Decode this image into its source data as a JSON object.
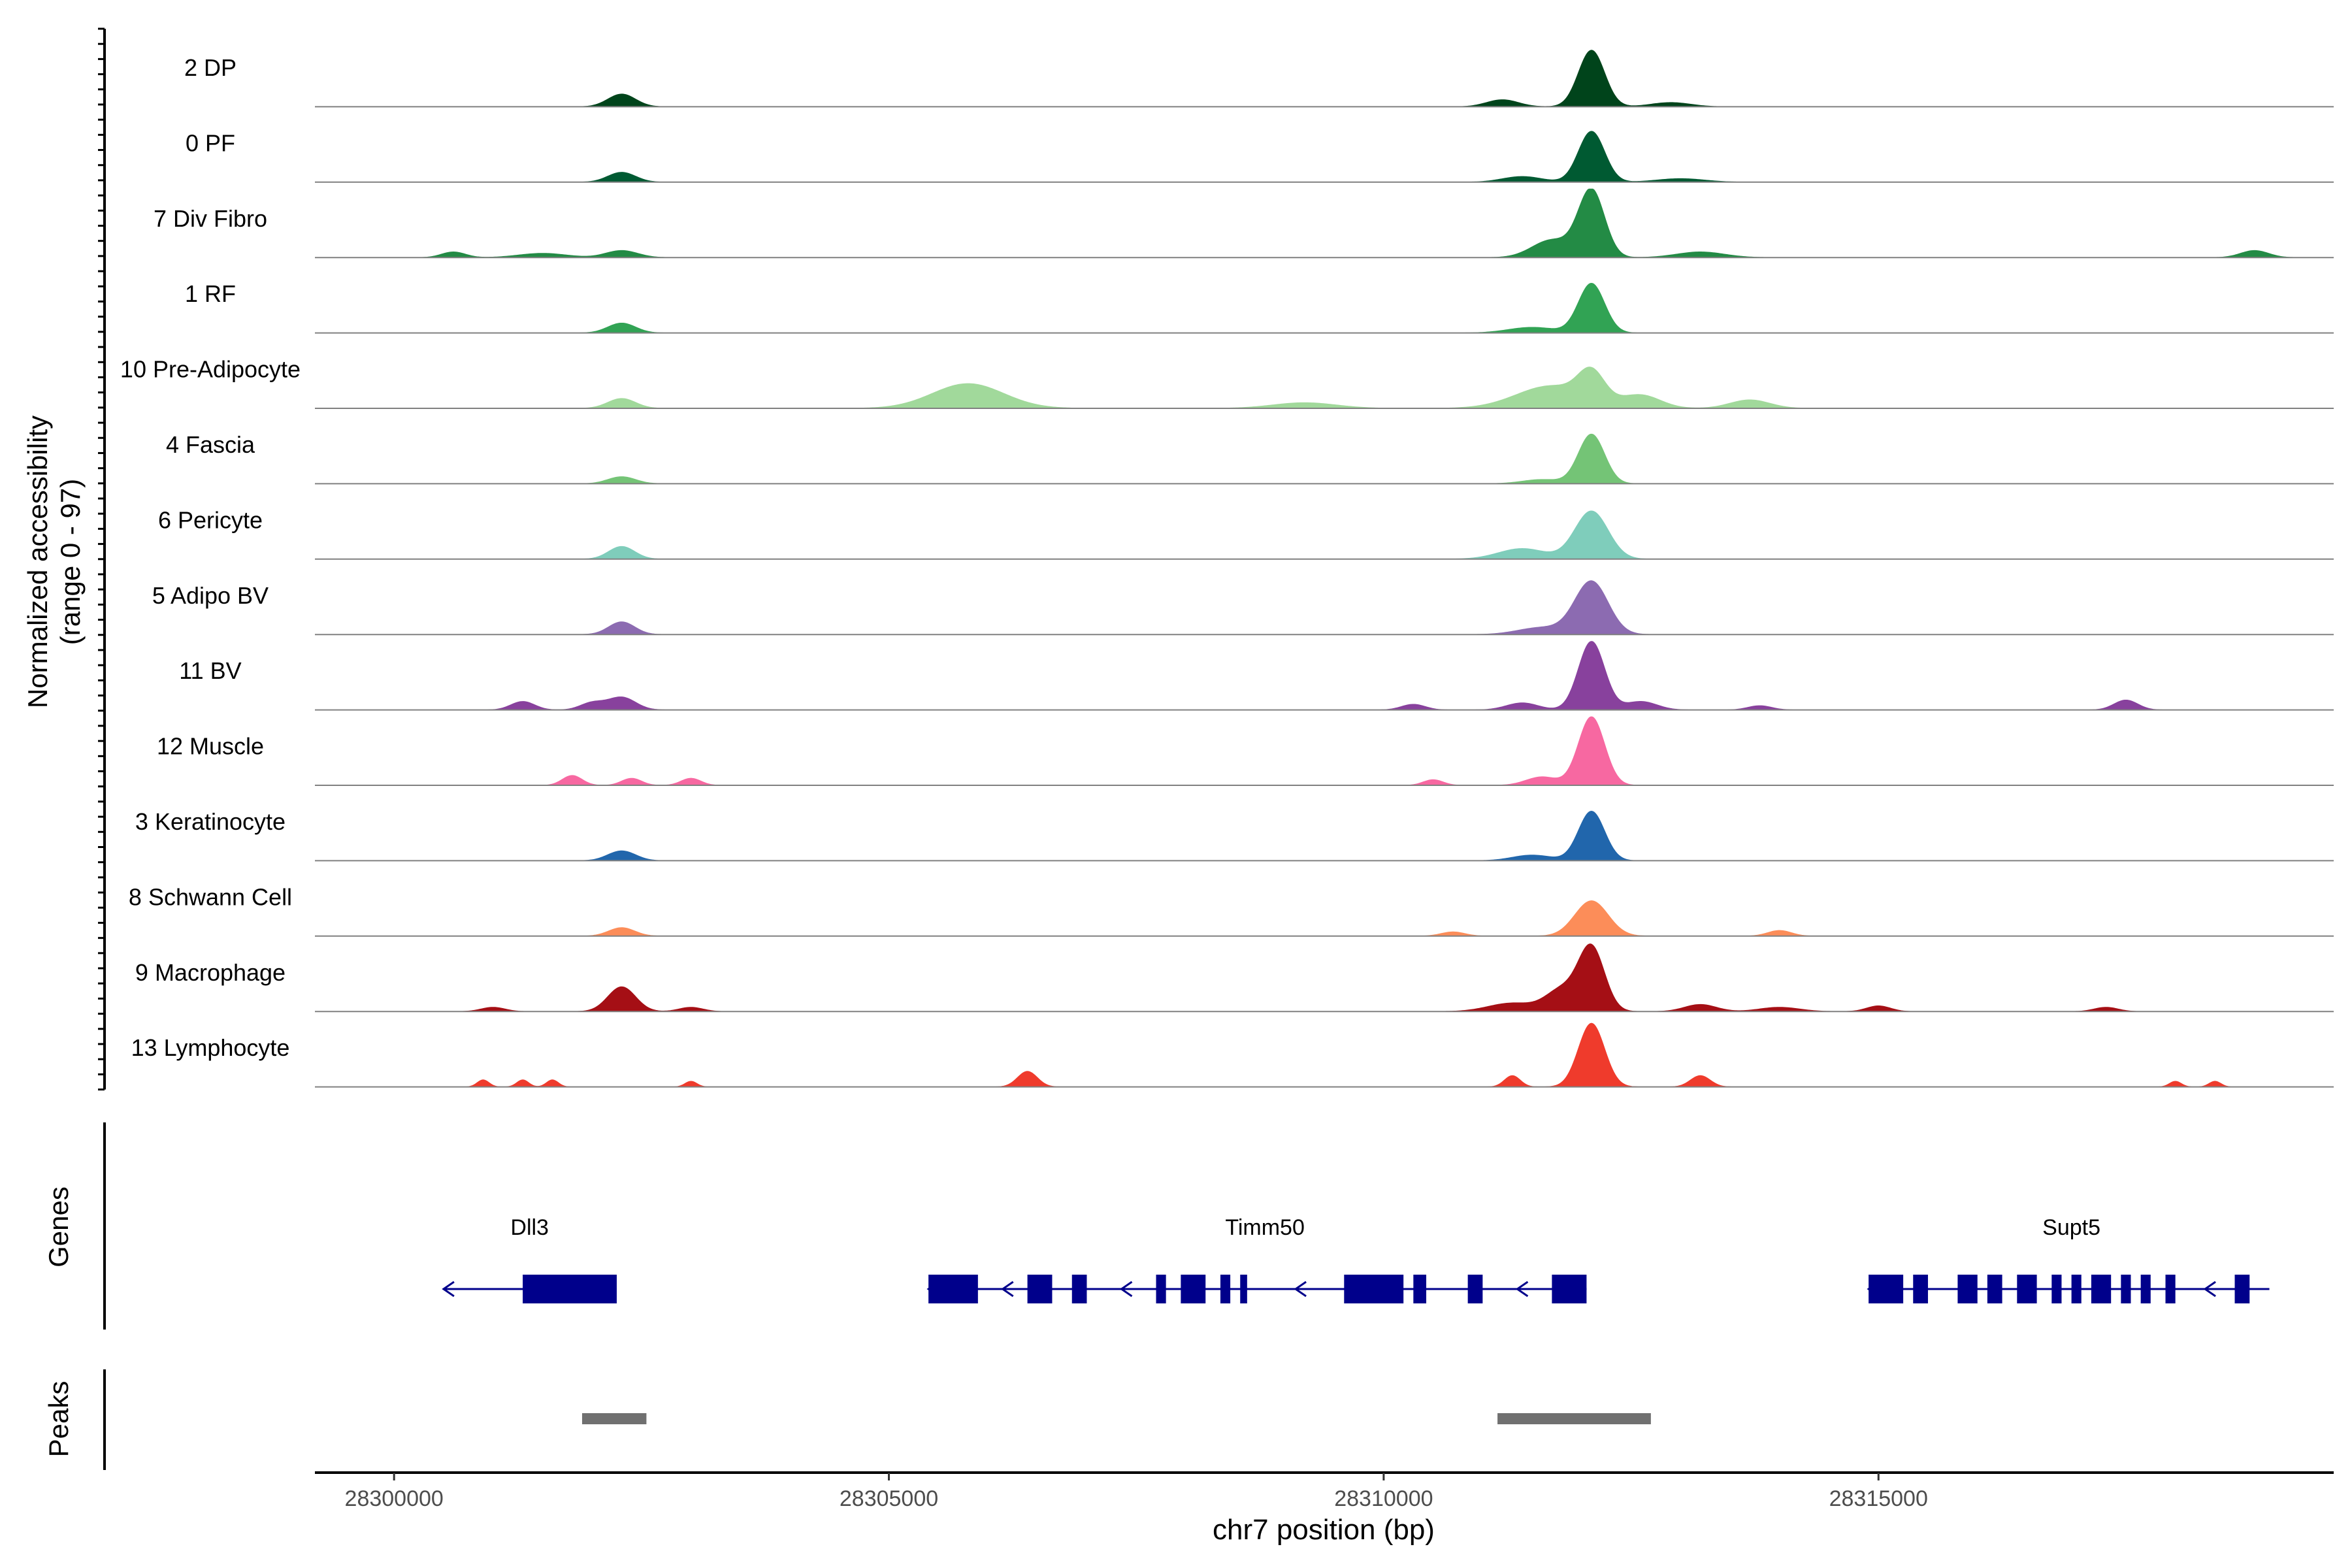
{
  "chart_data": {
    "type": "area",
    "title": "",
    "ylabel": "Normalized accessibility",
    "ylabel_sub": "(range 0 - 97)",
    "xlabel": "chr7 position (bp)",
    "xlim": [
      28299200,
      28319600
    ],
    "ylim": [
      0,
      97
    ],
    "x_ticks": [
      28300000,
      28305000,
      28310000,
      28315000
    ],
    "x_tick_labels": [
      "28300000",
      "28305000",
      "28310000",
      "28315000"
    ],
    "tracks": [
      {
        "name": "2 DP",
        "color": "#00441b",
        "peaks": [
          [
            28302300,
            18,
            350
          ],
          [
            28312100,
            80,
            330
          ],
          [
            28311200,
            10,
            400
          ],
          [
            28312900,
            6,
            500
          ]
        ]
      },
      {
        "name": "0 PF",
        "color": "#005a32",
        "peaks": [
          [
            28302300,
            14,
            350
          ],
          [
            28312100,
            72,
            330
          ],
          [
            28311400,
            8,
            500
          ],
          [
            28313000,
            5,
            600
          ]
        ]
      },
      {
        "name": "7 Div Fibro",
        "color": "#238b45",
        "peaks": [
          [
            28300600,
            8,
            300
          ],
          [
            28302300,
            10,
            400
          ],
          [
            28301500,
            6,
            600
          ],
          [
            28312100,
            95,
            330
          ],
          [
            28311700,
            25,
            500
          ],
          [
            28313200,
            8,
            600
          ],
          [
            28318800,
            10,
            350
          ]
        ]
      },
      {
        "name": "1 RF",
        "color": "#31a354",
        "peaks": [
          [
            28302300,
            14,
            350
          ],
          [
            28312100,
            70,
            330
          ],
          [
            28311500,
            8,
            600
          ]
        ]
      },
      {
        "name": "10 Pre-Adipocyte",
        "color": "#a1d99b",
        "peaks": [
          [
            28305800,
            35,
            900
          ],
          [
            28311700,
            32,
            900
          ],
          [
            28312100,
            40,
            330
          ],
          [
            28312600,
            18,
            500
          ],
          [
            28302300,
            14,
            350
          ],
          [
            28313700,
            12,
            500
          ],
          [
            28309200,
            8,
            800
          ]
        ]
      },
      {
        "name": "4 Fascia",
        "color": "#74c476",
        "peaks": [
          [
            28302300,
            10,
            350
          ],
          [
            28312100,
            70,
            330
          ],
          [
            28311600,
            6,
            500
          ]
        ]
      },
      {
        "name": "6 Pericyte",
        "color": "#7fcdbb",
        "peaks": [
          [
            28302300,
            18,
            330
          ],
          [
            28312100,
            68,
            420
          ],
          [
            28311400,
            15,
            600
          ]
        ]
      },
      {
        "name": "5 Adipo BV",
        "color": "#8c6bb1",
        "peaks": [
          [
            28302300,
            18,
            330
          ],
          [
            28312100,
            75,
            420
          ],
          [
            28311600,
            10,
            600
          ]
        ]
      },
      {
        "name": "11 BV",
        "color": "#88419d",
        "peaks": [
          [
            28302300,
            18,
            350
          ],
          [
            28301300,
            12,
            300
          ],
          [
            28302000,
            10,
            300
          ],
          [
            28312100,
            97,
            330
          ],
          [
            28311400,
            10,
            400
          ],
          [
            28312600,
            12,
            400
          ],
          [
            28317500,
            14,
            300
          ],
          [
            28310300,
            8,
            300
          ],
          [
            28313800,
            6,
            300
          ]
        ]
      },
      {
        "name": "12 Muscle",
        "color": "#f768a1",
        "peaks": [
          [
            28312100,
            97,
            330
          ],
          [
            28311600,
            12,
            400
          ],
          [
            28301800,
            14,
            250
          ],
          [
            28302400,
            10,
            250
          ],
          [
            28303000,
            10,
            250
          ],
          [
            28310500,
            8,
            250
          ]
        ]
      },
      {
        "name": "3 Keratinocyte",
        "color": "#2166ac",
        "peaks": [
          [
            28302300,
            14,
            350
          ],
          [
            28312100,
            70,
            330
          ],
          [
            28311500,
            8,
            500
          ]
        ]
      },
      {
        "name": "8 Schwann Cell",
        "color": "#fc8d59",
        "peaks": [
          [
            28302300,
            12,
            330
          ],
          [
            28312100,
            50,
            420
          ],
          [
            28314000,
            8,
            300
          ],
          [
            28310700,
            6,
            300
          ]
        ]
      },
      {
        "name": "9 Macrophage",
        "color": "#a50f15",
        "peaks": [
          [
            28302300,
            35,
            350
          ],
          [
            28312100,
            90,
            330
          ],
          [
            28311800,
            30,
            400
          ],
          [
            28311300,
            12,
            600
          ],
          [
            28313200,
            10,
            400
          ],
          [
            28314000,
            6,
            500
          ],
          [
            28315000,
            8,
            300
          ],
          [
            28317300,
            6,
            300
          ],
          [
            28301000,
            6,
            300
          ],
          [
            28303000,
            6,
            300
          ]
        ]
      },
      {
        "name": "13 Lymphocyte",
        "color": "#ef3b2c",
        "peaks": [
          [
            28312100,
            90,
            330
          ],
          [
            28306400,
            22,
            250
          ],
          [
            28311300,
            16,
            200
          ],
          [
            28313200,
            16,
            250
          ],
          [
            28300900,
            10,
            150
          ],
          [
            28301300,
            10,
            150
          ],
          [
            28301600,
            10,
            150
          ],
          [
            28303000,
            8,
            150
          ],
          [
            28318000,
            8,
            150
          ],
          [
            28318400,
            8,
            150
          ]
        ]
      }
    ],
    "genes_label": "Genes",
    "genes": [
      {
        "name": "Dll3",
        "label_x": 28301370,
        "strand": "-",
        "start": 28300500,
        "end": 28302250,
        "exons": [
          [
            28301300,
            28302250
          ]
        ]
      },
      {
        "name": "Timm50",
        "label_x": 28308800,
        "strand": "-",
        "start": 28305400,
        "end": 28312050,
        "exons": [
          [
            28305400,
            28305900
          ],
          [
            28306400,
            28306650
          ],
          [
            28306850,
            28307000
          ],
          [
            28307700,
            28307800
          ],
          [
            28307950,
            28308200
          ],
          [
            28308350,
            28308450
          ],
          [
            28308550,
            28308620
          ],
          [
            28309600,
            28310200
          ],
          [
            28310300,
            28310430
          ],
          [
            28310850,
            28311000
          ],
          [
            28311700,
            28312050
          ]
        ]
      },
      {
        "name": "Supt5",
        "label_x": 28316950,
        "strand": "-",
        "start": 28314900,
        "end": 28318950,
        "exons": [
          [
            28314900,
            28315250
          ],
          [
            28315350,
            28315500
          ],
          [
            28315800,
            28316000
          ],
          [
            28316100,
            28316250
          ],
          [
            28316400,
            28316600
          ],
          [
            28316750,
            28316850
          ],
          [
            28316950,
            28317050
          ],
          [
            28317150,
            28317350
          ],
          [
            28317450,
            28317550
          ],
          [
            28317650,
            28317750
          ],
          [
            28317900,
            28318000
          ],
          [
            28318600,
            28318750
          ]
        ]
      }
    ],
    "peaks_label": "Peaks",
    "peak_regions": [
      [
        28301900,
        28302550
      ],
      [
        28311150,
        28312700
      ]
    ]
  }
}
